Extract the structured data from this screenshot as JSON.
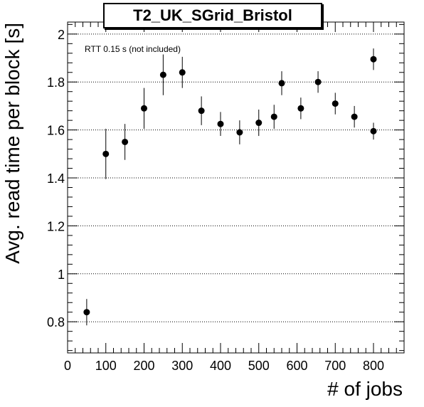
{
  "chart_data": {
    "type": "scatter",
    "title": "T2_UK_SGrid_Bristol",
    "xlabel": "# of jobs",
    "ylabel": "Avg. read time per block [s]",
    "annotation": "RTT 0.15 s (not included)",
    "xlim": [
      0,
      880
    ],
    "ylim": [
      0.67,
      2.05
    ],
    "x_ticks": [
      0,
      100,
      200,
      300,
      400,
      500,
      600,
      700,
      800
    ],
    "y_ticks": [
      0.8,
      1,
      1.2,
      1.4,
      1.6,
      1.8,
      2
    ],
    "y_tick_labels": [
      "0.8",
      "1",
      "1.2",
      "1.4",
      "1.6",
      "1.8",
      "2"
    ],
    "grid": "horizontal dotted",
    "series": [
      {
        "points": [
          {
            "x": 50,
            "y": 0.84,
            "err": 0.055
          },
          {
            "x": 100,
            "y": 1.5,
            "err": 0.105
          },
          {
            "x": 150,
            "y": 1.55,
            "err": 0.075
          },
          {
            "x": 200,
            "y": 1.69,
            "err": 0.085
          },
          {
            "x": 250,
            "y": 1.83,
            "err": 0.085
          },
          {
            "x": 300,
            "y": 1.84,
            "err": 0.065
          },
          {
            "x": 350,
            "y": 1.68,
            "err": 0.06
          },
          {
            "x": 400,
            "y": 1.625,
            "err": 0.05
          },
          {
            "x": 450,
            "y": 1.59,
            "err": 0.05
          },
          {
            "x": 500,
            "y": 1.63,
            "err": 0.055
          },
          {
            "x": 540,
            "y": 1.655,
            "err": 0.05
          },
          {
            "x": 560,
            "y": 1.795,
            "err": 0.05
          },
          {
            "x": 610,
            "y": 1.69,
            "err": 0.045
          },
          {
            "x": 655,
            "y": 1.8,
            "err": 0.045
          },
          {
            "x": 700,
            "y": 1.71,
            "err": 0.045
          },
          {
            "x": 750,
            "y": 1.655,
            "err": 0.045
          },
          {
            "x": 800,
            "y": 1.595,
            "err": 0.035
          },
          {
            "x": 800,
            "y": 1.895,
            "err": 0.045
          }
        ]
      }
    ]
  }
}
